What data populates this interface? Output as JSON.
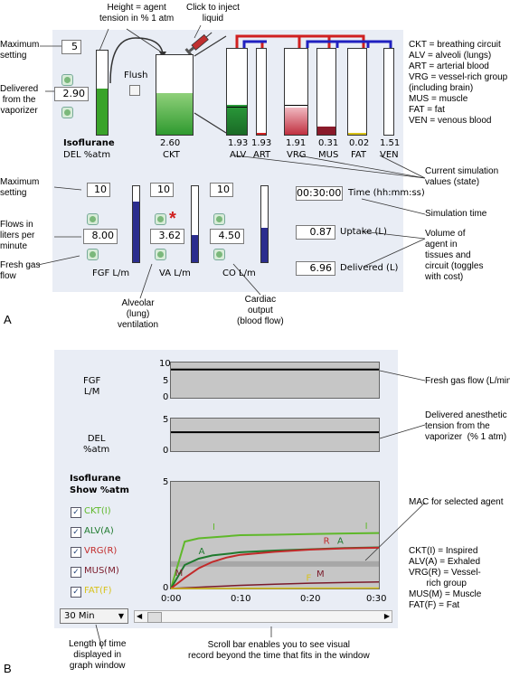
{
  "panelA": {
    "letter": "A",
    "agent": "Isoflurane",
    "del_label": "DEL %atm",
    "max_setting": "5",
    "delivered": "2.90",
    "flush": "Flush",
    "ckt_value": "2.60",
    "ckt_label": "CKT",
    "compartments": [
      {
        "label": "ALV",
        "value": "1.93"
      },
      {
        "label": "ART",
        "value": "1.93"
      },
      {
        "label": "VRG",
        "value": "1.91"
      },
      {
        "label": "MUS",
        "value": "0.31"
      },
      {
        "label": "FAT",
        "value": "0.02"
      },
      {
        "label": "VEN",
        "value": "1.51"
      }
    ],
    "fgf": {
      "max": "10",
      "value": "8.00",
      "label": "FGF  L/m"
    },
    "va": {
      "max": "10",
      "value": "3.62",
      "label": "VA  L/m"
    },
    "co": {
      "max": "10",
      "value": "4.50",
      "label": "CO  L/m"
    },
    "time": {
      "value": "00:30:00",
      "label": "Time (hh:mm:ss)"
    },
    "uptake": {
      "value": "0.87",
      "label": "Uptake (L)"
    },
    "delivered_l": {
      "value": "6.96",
      "label": "Delivered (L)"
    },
    "annotations": {
      "max_setting": "Maximum\nsetting",
      "delivered_from": "Delivered\nfrom the\nvaporizer",
      "height": "Height = agent\ntension in % 1 atm",
      "inject": "Click to inject\nliquid",
      "legend": "CKT = breathing circuit\nALV = alveoli (lungs)\nART = arterial blood\nVRG = vessel-rich group\n(including brain)\nMUS = muscle\nFAT = fat\nVEN = venous blood",
      "current_values": "Current simulation\nvalues (state)",
      "max_setting2": "Maximum\nsetting",
      "flows": "Flows in\nliters per\nminute",
      "fresh_gas": "Fresh gas\nflow",
      "sim_time": "Simulation time",
      "volume": "Volume of\nagent in\ntissues and\ncircuit (toggles\nwith cost)",
      "alveolar": "Alveolar\n(lung)\nventilation",
      "cardiac": "Cardiac\noutput\n(blood flow)"
    }
  },
  "panelB": {
    "letter": "B",
    "fgf_label": "FGF\nL/M",
    "del_label": "DEL\n%atm",
    "agent": "Isoflurane",
    "show": "Show %atm",
    "fgf_ticks": [
      "10",
      "5",
      "0"
    ],
    "del_ticks": [
      "5",
      "",
      "0"
    ],
    "main_ticks": [
      "5",
      "",
      "",
      "0"
    ],
    "x_ticks": [
      "0:00",
      "0:10",
      "0:20",
      "0:30"
    ],
    "legend": [
      {
        "label": "CKT(I)",
        "color": "#5fb82a"
      },
      {
        "label": "ALV(A)",
        "color": "#1f7a2e"
      },
      {
        "label": "VRG(R)",
        "color": "#c22a2a"
      },
      {
        "label": "MUS(M)",
        "color": "#7a1a2a"
      },
      {
        "label": "FAT(F)",
        "color": "#d8c21a"
      }
    ],
    "curve_letters": {
      "I": "I",
      "A": "A",
      "R": "R",
      "M": "M",
      "F": "F"
    },
    "dropdown": "30 Min",
    "annotations": {
      "fgf": "Fresh gas flow (L/min)",
      "del": "Delivered anesthetic\ntension from the\nvaporizer  (% 1 atm)",
      "mac": "MAC for selected agent",
      "legend": "CKT(I) = Inspired\nALV(A) = Exhaled\nVRG(R) = Vessel-\n       rich group\nMUS(M) = Muscle\nFAT(F) = Fat",
      "length": "Length of time\ndisplayed in\ngraph window",
      "scroll": "Scroll bar enables you to see visual\nrecord beyond the time that fits in the window"
    }
  },
  "chart_data": {
    "type": "line",
    "x_unit": "min",
    "x": [
      0,
      2,
      4,
      6,
      8,
      10,
      15,
      20,
      25,
      30
    ],
    "series": [
      {
        "name": "CKT(I)",
        "values": [
          0,
          2.2,
          2.35,
          2.4,
          2.45,
          2.5,
          2.52,
          2.55,
          2.58,
          2.6
        ]
      },
      {
        "name": "ALV(A)",
        "values": [
          0,
          1.1,
          1.4,
          1.55,
          1.62,
          1.7,
          1.78,
          1.84,
          1.9,
          1.93
        ]
      },
      {
        "name": "VRG(R)",
        "values": [
          0,
          0.5,
          0.95,
          1.25,
          1.45,
          1.58,
          1.72,
          1.82,
          1.88,
          1.91
        ]
      },
      {
        "name": "MUS(M)",
        "values": [
          0,
          0.03,
          0.06,
          0.09,
          0.12,
          0.15,
          0.2,
          0.25,
          0.28,
          0.31
        ]
      },
      {
        "name": "FAT(F)",
        "values": [
          0,
          0,
          0.002,
          0.004,
          0.006,
          0.008,
          0.011,
          0.015,
          0.018,
          0.02
        ]
      }
    ],
    "mac": 1.15,
    "ylim": [
      0,
      5
    ],
    "xlim": [
      0,
      30
    ],
    "fgf": {
      "value": 8,
      "ylim": [
        0,
        10
      ]
    },
    "del": {
      "value": 2.9,
      "ylim": [
        0,
        5
      ]
    }
  }
}
